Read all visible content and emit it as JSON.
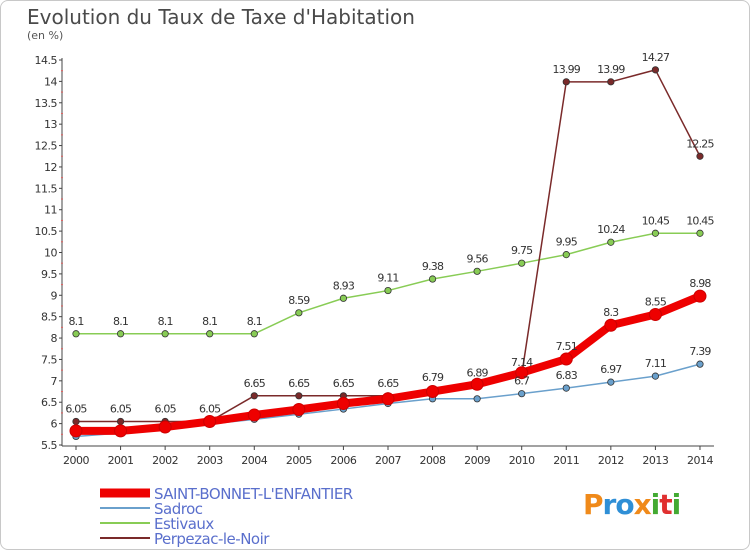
{
  "title": "Evolution du Taux de Taxe d'Habitation",
  "unit": "(en %)",
  "brand": {
    "text": "Proxiti",
    "colors": [
      "#f08a1a",
      "#2f8fd6",
      "#2f8fd6",
      "#f08a1a",
      "#44aa33",
      "#e03030",
      "#44aa33"
    ]
  },
  "chart_data": {
    "type": "line",
    "title": "Evolution du Taux de Taxe d'Habitation",
    "ylabel": "(en %)",
    "xlabel": "",
    "x": [
      "2000",
      "2001",
      "2002",
      "2003",
      "2004",
      "2005",
      "2006",
      "2007",
      "2008",
      "2009",
      "2010",
      "2011",
      "2012",
      "2013",
      "2014"
    ],
    "ylim": [
      5.5,
      14.5
    ],
    "yticks": [
      "5.5",
      "6",
      "6.5",
      "7",
      "7.5",
      "8",
      "8.5",
      "9",
      "9.5",
      "10",
      "10.5",
      "11",
      "11.5",
      "12",
      "12.5",
      "13",
      "13.5",
      "14",
      "14.5"
    ],
    "grid": false,
    "legend_position": "bottom-left",
    "series": [
      {
        "name": "SAINT-BONNET-L'ENFANTIER",
        "color": "#ee0000",
        "values": [
          5.83,
          5.83,
          5.92,
          6.05,
          6.2,
          6.33,
          6.47,
          6.58,
          6.75,
          6.92,
          7.19,
          7.51,
          8.3,
          8.55,
          8.98
        ],
        "labels": [
          "",
          "",
          "",
          "",
          "",
          "",
          "",
          "",
          "",
          "",
          "",
          "7.51",
          "8.3",
          "8.55",
          "8.98"
        ]
      },
      {
        "name": "Sadroc",
        "color": "#6aa0cc",
        "values": [
          5.7,
          5.78,
          5.88,
          5.99,
          6.1,
          6.22,
          6.34,
          6.47,
          6.58,
          6.58,
          6.7,
          6.83,
          6.97,
          7.11,
          7.39
        ],
        "labels": [
          "",
          "",
          "",
          "",
          "",
          "",
          "",
          "",
          "",
          "",
          "6.7",
          "6.83",
          "6.97",
          "7.11",
          "7.39"
        ]
      },
      {
        "name": "Estivaux",
        "color": "#88cc55",
        "values": [
          8.1,
          8.1,
          8.1,
          8.1,
          8.1,
          8.59,
          8.93,
          9.11,
          9.38,
          9.56,
          9.75,
          9.95,
          10.24,
          10.45,
          10.45
        ],
        "labels": [
          "8.1",
          "8.1",
          "8.1",
          "8.1",
          "8.1",
          "8.59",
          "8.93",
          "9.11",
          "9.38",
          "9.56",
          "9.75",
          "9.95",
          "10.24",
          "10.45",
          "10.45"
        ]
      },
      {
        "name": "Perpezac-le-Noir",
        "color": "#7a2a2a",
        "values": [
          6.05,
          6.05,
          6.05,
          6.05,
          6.65,
          6.65,
          6.65,
          6.65,
          6.79,
          6.89,
          7.14,
          13.99,
          13.99,
          14.27,
          12.25
        ],
        "labels": [
          "6.05",
          "6.05",
          "6.05",
          "6.05",
          "6.65",
          "6.65",
          "6.65",
          "6.65",
          "6.79",
          "6.89",
          "7.14",
          "13.99",
          "13.99",
          "14.27",
          "12.25"
        ]
      }
    ]
  }
}
